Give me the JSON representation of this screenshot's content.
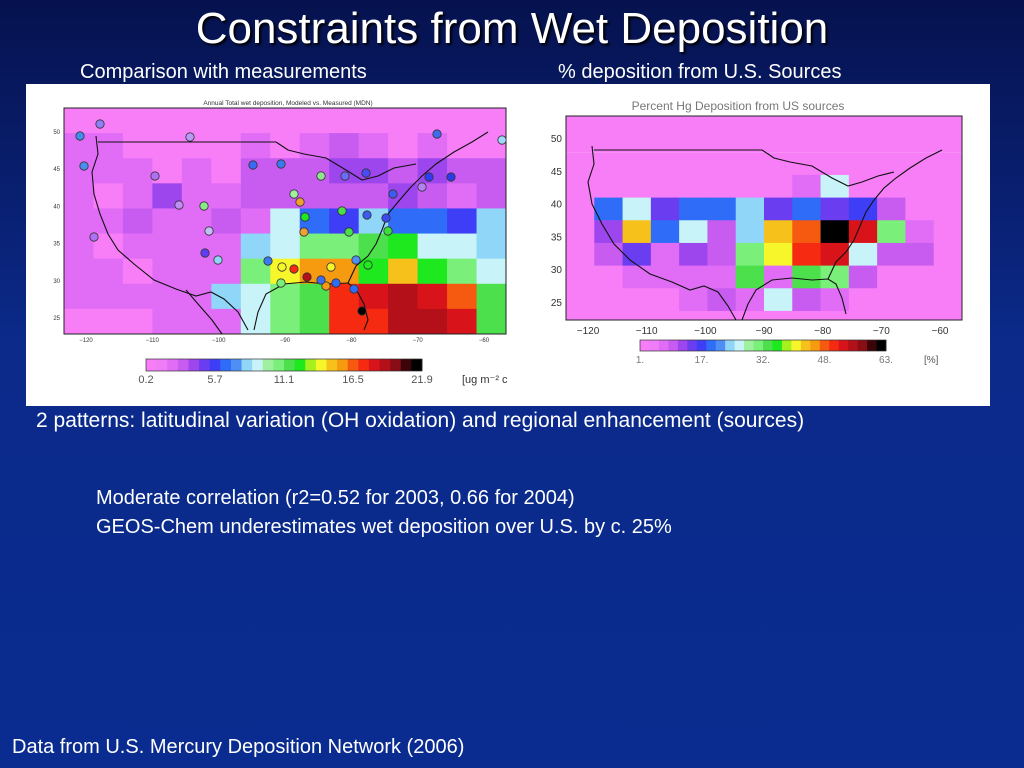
{
  "slide": {
    "title": "Constraints from Wet Deposition",
    "left_subtitle": "Comparison with measurements",
    "right_subtitle": "% deposition from U.S. Sources",
    "caption": "2 patterns: latitudinal variation (OH oxidation) and regional enhancement (sources)",
    "notes": [
      "Moderate correlation (r2=0.52 for 2003, 0.66 for 2004)",
      "GEOS-Chem underestimates wet deposition over U.S. by c. 25%"
    ],
    "footer": "Data from U.S. Mercury Deposition Network (2006)"
  },
  "left_map": {
    "title": "Annual Total wet deposition, Modeled vs. Measured (MDN)",
    "x_ticks": [
      "−120",
      "−110",
      "−100",
      "−90",
      "−80",
      "−70",
      "−60"
    ],
    "y_ticks": [
      "25",
      "30",
      "35",
      "40",
      "45",
      "50"
    ],
    "colorbar_labels": [
      "0.2",
      "5.7",
      "11.1",
      "16.5",
      "21.9"
    ],
    "units": "[ug m⁻² c"
  },
  "right_map": {
    "title": "Percent Hg Deposition from US sources",
    "x_ticks": [
      "−120",
      "−110",
      "−100",
      "−90",
      "−80",
      "−70",
      "−60"
    ],
    "y_ticks": [
      "25",
      "30",
      "35",
      "40",
      "45",
      "50"
    ],
    "colorbar_labels": [
      "1.",
      "17.",
      "32.",
      "48.",
      "63."
    ],
    "units": "[%]"
  }
}
